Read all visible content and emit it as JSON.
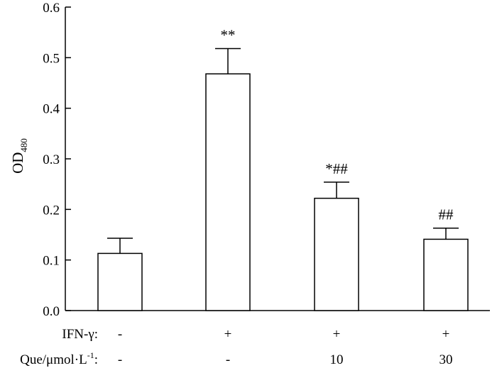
{
  "chart_data": {
    "type": "bar",
    "ylabel": "OD",
    "ylabel_subscript": "480",
    "ylim": [
      0.0,
      0.6
    ],
    "yticks": [
      "0.0",
      "0.1",
      "0.2",
      "0.3",
      "0.4",
      "0.5",
      "0.6"
    ],
    "grid": false,
    "values": [
      0.113,
      0.468,
      0.222,
      0.141
    ],
    "errors": [
      0.03,
      0.05,
      0.032,
      0.022
    ],
    "significance": [
      "",
      "**",
      "*##",
      "##"
    ],
    "conditions": [
      {
        "label": "IFN-γ:",
        "values": [
          "-",
          "+",
          "+",
          "+"
        ]
      },
      {
        "label": "Que/μmol·L",
        "label_superscript": "-1",
        "label_suffix": ":",
        "values": [
          "-",
          "-",
          "10",
          "30"
        ]
      }
    ],
    "bar_fill": "#ffffff",
    "bar_stroke": "#000000"
  }
}
